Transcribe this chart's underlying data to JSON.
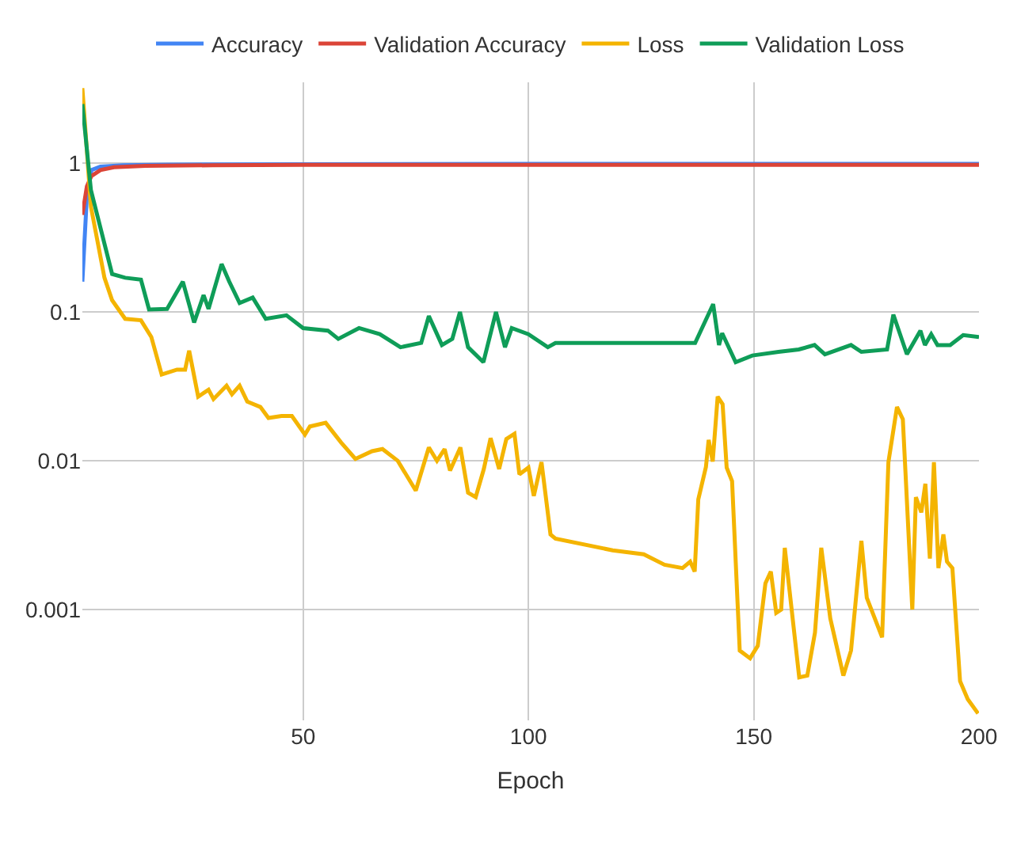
{
  "chart_data": {
    "type": "line",
    "xlabel": "Epoch",
    "legend": "top",
    "grid": true,
    "log": "y",
    "marker": "none",
    "line_style": "solid",
    "xlim": [
      1,
      200
    ],
    "xticks": [
      50,
      100,
      150,
      200
    ],
    "ylim": [
      0.00018,
      3.5
    ],
    "yticks": [
      0.001,
      0.01,
      0.1,
      1
    ],
    "series": [
      {
        "name": "Accuracy",
        "color": "#4285f4",
        "x": [
          1,
          2,
          3,
          5,
          10,
          20,
          50,
          100,
          150,
          200
        ],
        "values": [
          0.16,
          0.6,
          0.9,
          0.95,
          0.97,
          0.98,
          0.985,
          0.99,
          0.99,
          0.99
        ]
      },
      {
        "name": "Validation Accuracy",
        "color": "#db4437",
        "x": [
          1,
          2,
          3,
          5,
          8,
          15,
          30,
          50,
          100,
          150,
          200
        ],
        "values": [
          0.45,
          0.7,
          0.82,
          0.9,
          0.94,
          0.96,
          0.97,
          0.975,
          0.975,
          0.975,
          0.975
        ]
      },
      {
        "name": "Loss",
        "color": "#f4b400",
        "x": [
          1,
          2.9,
          5.9,
          7.6,
          10.5,
          14,
          16.3,
          18.6,
          22,
          23.8,
          24.7,
          26.7,
          29,
          30.1,
          33,
          34.2,
          35.9,
          37.6,
          40.5,
          42.3,
          45.2,
          47.5,
          50.4,
          51.5,
          55,
          58.4,
          61.6,
          65.3,
          67.6,
          71,
          75,
          77.9,
          79.7,
          81.4,
          82.6,
          84.9,
          86.6,
          88.3,
          90.1,
          91.6,
          93.5,
          95.1,
          96.9,
          98,
          100,
          101.2,
          102.9,
          104.9,
          106,
          118.7,
          125.6,
          130.2,
          134.2,
          135.9,
          136.9,
          137.7,
          139.4,
          140,
          140.9,
          142,
          143.1,
          144,
          145.2,
          146.9,
          149.2,
          150.9,
          152.6,
          153.8,
          155,
          156.1,
          156.9,
          160.1,
          161.9,
          163.6,
          165,
          167,
          169.9,
          171.6,
          173.9,
          175.1,
          178.5,
          179.9,
          181.8,
          183.1,
          185.2,
          186,
          187.2,
          188.1,
          189.1,
          190,
          191,
          192.1,
          192.9,
          194.1,
          195.8,
          197.5,
          199.8
        ],
        "values": [
          3.2,
          0.51,
          0.17,
          0.12,
          0.09,
          0.088,
          0.068,
          0.038,
          0.041,
          0.041,
          0.055,
          0.027,
          0.03,
          0.026,
          0.032,
          0.028,
          0.032,
          0.025,
          0.023,
          0.0194,
          0.02,
          0.02,
          0.015,
          0.017,
          0.018,
          0.0133,
          0.0103,
          0.0116,
          0.012,
          0.01,
          0.0063,
          0.0123,
          0.01,
          0.012,
          0.0086,
          0.0123,
          0.0061,
          0.0057,
          0.0088,
          0.0142,
          0.0088,
          0.014,
          0.0152,
          0.0081,
          0.009,
          0.0058,
          0.0098,
          0.0032,
          0.003,
          0.0025,
          0.00235,
          0.002,
          0.0019,
          0.0021,
          0.0018,
          0.0055,
          0.0091,
          0.0138,
          0.0099,
          0.027,
          0.024,
          0.009,
          0.0073,
          0.00053,
          0.00047,
          0.00057,
          0.0015,
          0.0018,
          0.00095,
          0.001,
          0.0026,
          0.00035,
          0.00036,
          0.0007,
          0.0026,
          0.00087,
          0.00036,
          0.00053,
          0.0029,
          0.0012,
          0.00065,
          0.0098,
          0.023,
          0.019,
          0.001,
          0.0057,
          0.0045,
          0.007,
          0.0022,
          0.0098,
          0.0019,
          0.0032,
          0.0021,
          0.0019,
          0.00033,
          0.00025,
          0.0002
        ]
      },
      {
        "name": "Validation Loss",
        "color": "#0f9d58",
        "x": [
          1,
          2.9,
          7.6,
          10.5,
          14,
          15.8,
          19.8,
          23.3,
          25.8,
          27.9,
          29,
          31.9,
          33.6,
          35.9,
          38.8,
          41.7,
          46.3,
          50,
          55.5,
          57.8,
          62.4,
          67,
          71.6,
          76.2,
          77.9,
          80.8,
          83.1,
          84.8,
          86.6,
          90,
          92.8,
          94.8,
          96.3,
          100,
          104.3,
          106,
          121,
          137,
          141,
          142.3,
          143,
          146,
          149.7,
          155.5,
          160,
          163.5,
          165.8,
          171.6,
          173.9,
          179.6,
          181,
          184,
          187,
          188,
          189.4,
          190.8,
          193.6,
          196.5,
          200
        ],
        "values": [
          2.5,
          0.66,
          0.18,
          0.17,
          0.165,
          0.104,
          0.105,
          0.16,
          0.085,
          0.13,
          0.105,
          0.21,
          0.16,
          0.115,
          0.125,
          0.09,
          0.095,
          0.078,
          0.075,
          0.066,
          0.078,
          0.071,
          0.058,
          0.062,
          0.094,
          0.06,
          0.066,
          0.1,
          0.058,
          0.046,
          0.1,
          0.058,
          0.078,
          0.071,
          0.058,
          0.062,
          0.062,
          0.062,
          0.113,
          0.06,
          0.072,
          0.046,
          0.051,
          0.054,
          0.056,
          0.06,
          0.052,
          0.06,
          0.054,
          0.056,
          0.096,
          0.052,
          0.075,
          0.06,
          0.071,
          0.06,
          0.06,
          0.07,
          0.068
        ]
      }
    ]
  }
}
